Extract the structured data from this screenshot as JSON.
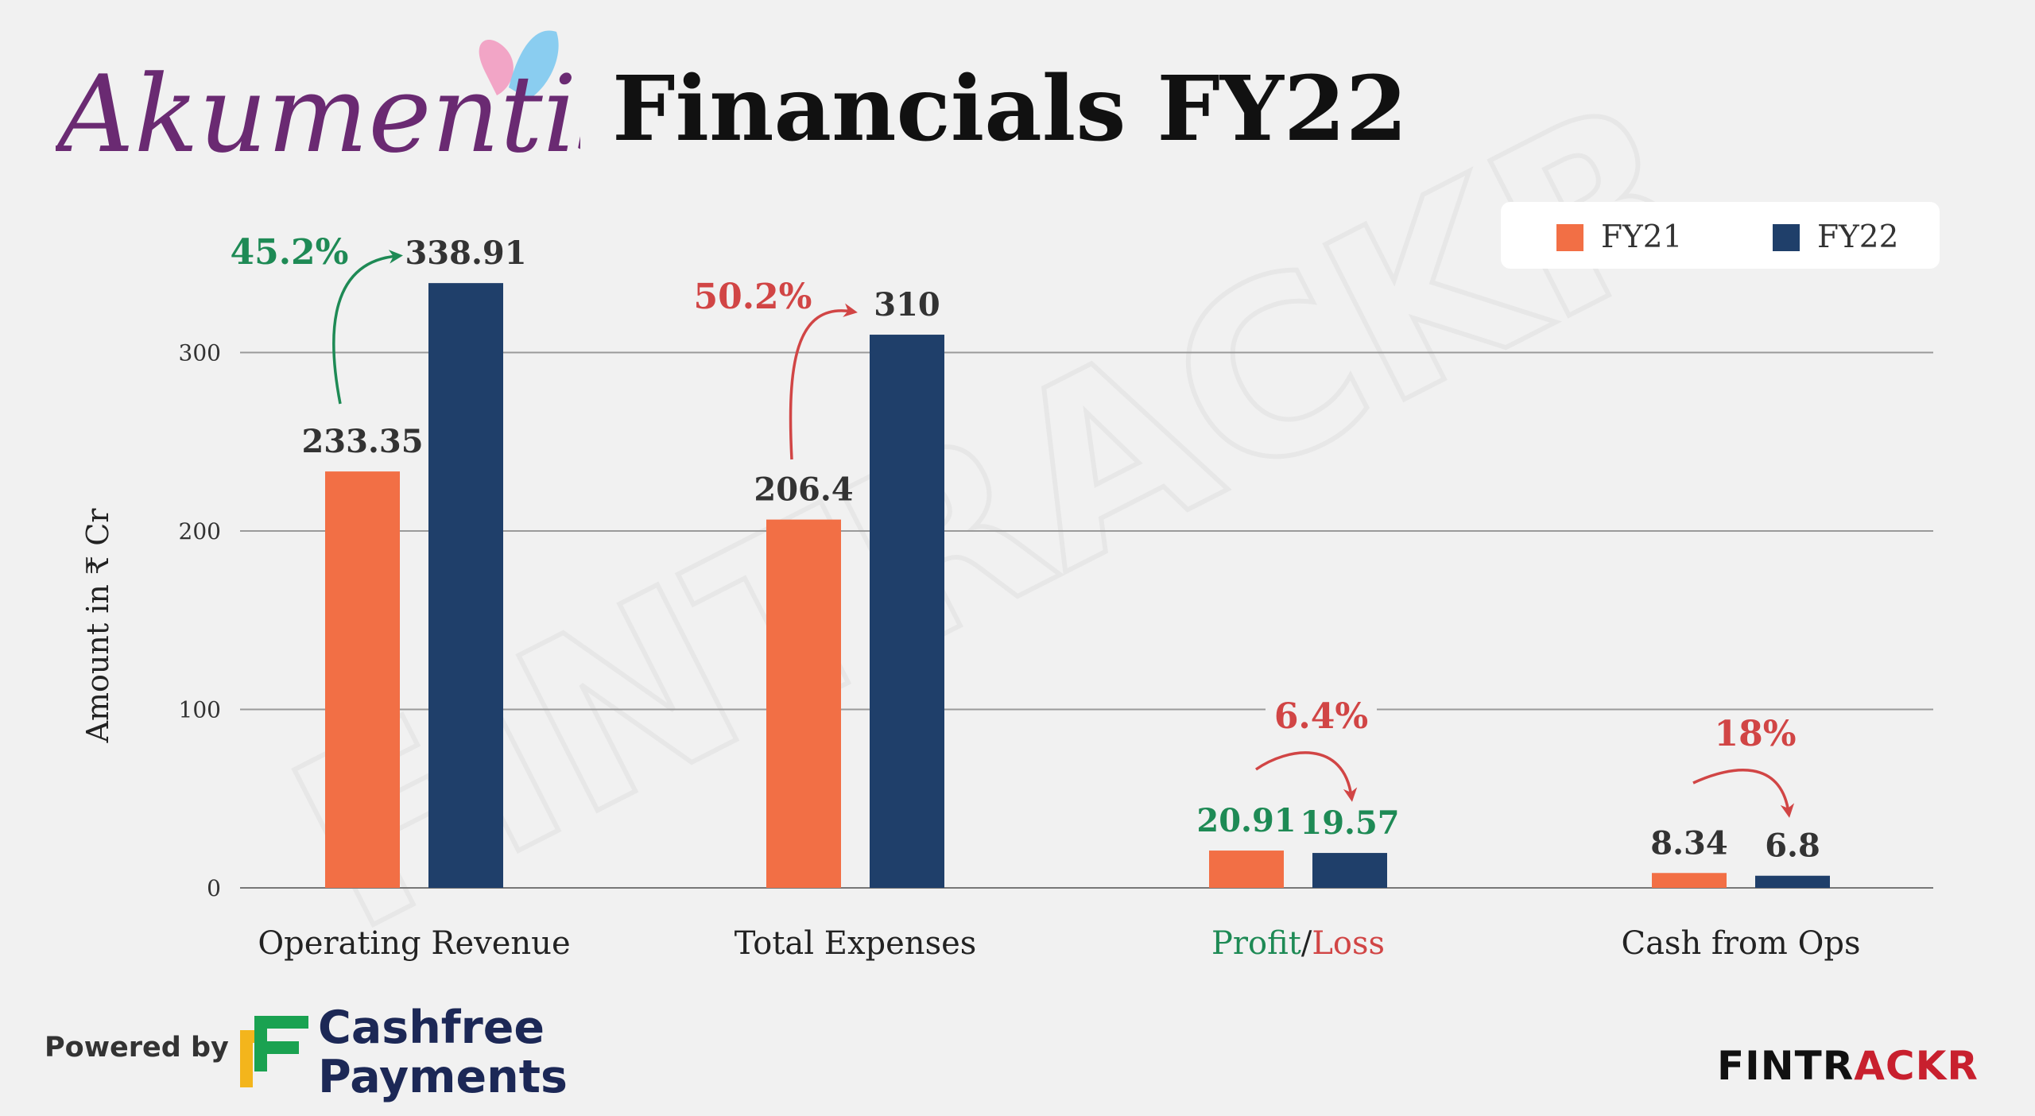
{
  "header": {
    "company": "Akumentis",
    "title": "Financials FY22"
  },
  "legend": [
    {
      "label": "FY21",
      "color": "#f26f45"
    },
    {
      "label": "FY22",
      "color": "#1f3f6a"
    }
  ],
  "chart_data": {
    "type": "bar",
    "categories": [
      "Operating Revenue",
      "Total Expenses",
      "Profit/Loss",
      "Cash from Ops"
    ],
    "series": [
      {
        "name": "FY21",
        "values": [
          233.35,
          206.4,
          20.91,
          8.34
        ],
        "color": "#f26f45"
      },
      {
        "name": "FY22",
        "values": [
          338.91,
          310,
          19.57,
          6.8
        ],
        "color": "#1f3f6a"
      }
    ],
    "data_labels": [
      [
        "233.35",
        "338.91"
      ],
      [
        "206.4",
        "310"
      ],
      [
        "20.91",
        "19.57"
      ],
      [
        "8.34",
        "6.8"
      ]
    ],
    "change_labels": [
      "45.2%",
      "50.2%",
      "6.4%",
      "18%"
    ],
    "change_colors": [
      "#1e8a55",
      "#d14545",
      "#d14545",
      "#d14545"
    ],
    "ylabel": "Amount in ₹ Cr",
    "yticks": [
      0,
      100,
      200,
      300
    ],
    "ylim": [
      0,
      350
    ],
    "grid": true,
    "legend_position": "top-right",
    "profit_loss_parts": [
      "Profit",
      "/",
      "Loss"
    ],
    "colors": {
      "profit": "#1e8a55",
      "loss": "#d14545"
    }
  },
  "watermark": "FINTRACKR",
  "footer": {
    "powered_by": "Powered by",
    "sponsor_line1": "Cashfree",
    "sponsor_line2": "Payments",
    "brand_part1": "FINTR",
    "brand_part2": "ACKR",
    "brand_colors": {
      "dark": "#111111",
      "accent": "#c8202e"
    }
  }
}
